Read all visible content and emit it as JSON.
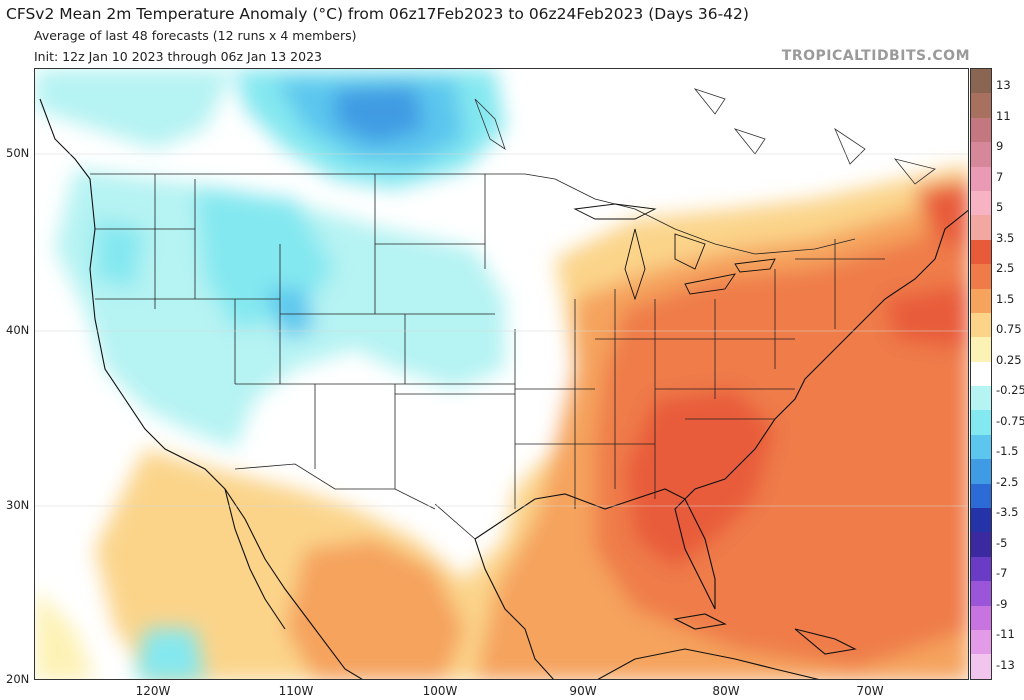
{
  "header": {
    "title": "CFSv2 Mean 2m Temperature Anomaly (°C) from 06z17Feb2023 to 06z24Feb2023 (Days 36-42)",
    "subtitle1": "Average of last 48 forecasts (12 runs x 4 members)",
    "subtitle2": "Init: 12z Jan 10 2023 through 06z Jan 13 2023",
    "brand": "TROPICALTIDBITS.COM"
  },
  "map": {
    "lat_labels": [
      "50N",
      "40N",
      "30N",
      "20N"
    ],
    "lon_labels": [
      "120W",
      "110W",
      "100W",
      "90W",
      "80W",
      "70W"
    ],
    "region": "Contiguous United States, southern Canada, Mexico, Caribbean"
  },
  "colorbar": {
    "labels": [
      "13",
      "11",
      "9",
      "7",
      "5",
      "3.5",
      "2.5",
      "1.5",
      "0.75",
      "0.25",
      "-0.25",
      "-0.75",
      "-1.5",
      "-2.5",
      "-3.5",
      "-5",
      "-7",
      "-9",
      "-11",
      "-13"
    ],
    "colors": [
      "#8a6552",
      "#a8705f",
      "#c2787e",
      "#d7879a",
      "#ea9ab5",
      "#f7b3c3",
      "#f2a8a0",
      "#e85b3a",
      "#ef7c48",
      "#f5a35d",
      "#fbd48a",
      "#fdf2b5",
      "#ffffff",
      "#b6f3f3",
      "#84e8f0",
      "#5cc6ee",
      "#3f9be3",
      "#2c6ad6",
      "#2433a8",
      "#3b2a9f",
      "#6a3bc4",
      "#9a55d8",
      "#c774e0",
      "#e39be7",
      "#f2c5ee"
    ]
  }
}
